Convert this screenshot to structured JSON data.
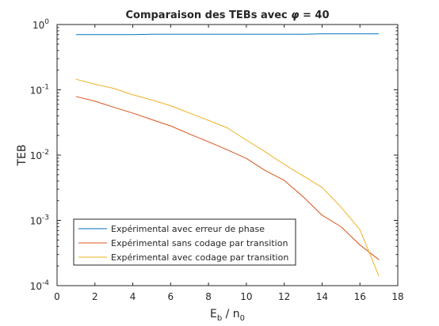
{
  "chart_data": {
    "type": "line",
    "title_prefix": "Comparaison des TEBs avec ",
    "title_symbol": "φ",
    "title_suffix": " = 40",
    "xlabel_base": "E",
    "xlabel_sub": "b",
    "xlabel_mid": " / n",
    "xlabel_sub2": "0",
    "ylabel": "TEB",
    "xlim": [
      0,
      18
    ],
    "ylim": [
      0.0001,
      1
    ],
    "yscale": "log",
    "grid": false,
    "legend_position": "bottom-left",
    "x_ticks": [
      {
        "value": 0,
        "label": "0"
      },
      {
        "value": 2,
        "label": "2"
      },
      {
        "value": 4,
        "label": "4"
      },
      {
        "value": 6,
        "label": "6"
      },
      {
        "value": 8,
        "label": "8"
      },
      {
        "value": 10,
        "label": "10"
      },
      {
        "value": 12,
        "label": "12"
      },
      {
        "value": 14,
        "label": "14"
      },
      {
        "value": 16,
        "label": "16"
      },
      {
        "value": 18,
        "label": "18"
      }
    ],
    "y_ticks": [
      {
        "value": 0.0001,
        "base": "10",
        "exp": "-4"
      },
      {
        "value": 0.001,
        "base": "10",
        "exp": "-3"
      },
      {
        "value": 0.01,
        "base": "10",
        "exp": "-2"
      },
      {
        "value": 0.1,
        "base": "10",
        "exp": "-1"
      },
      {
        "value": 1,
        "base": "10",
        "exp": "0"
      }
    ],
    "x": [
      1,
      2,
      3,
      4,
      5,
      6,
      7,
      8,
      9,
      10,
      11,
      12,
      13,
      14,
      15,
      16,
      17
    ],
    "series": [
      {
        "name": "Expérimental avec erreur de phase",
        "color": "#0072bd",
        "values": [
          0.7,
          0.7,
          0.7,
          0.7,
          0.71,
          0.71,
          0.71,
          0.71,
          0.71,
          0.71,
          0.71,
          0.71,
          0.71,
          0.72,
          0.72,
          0.72,
          0.72
        ]
      },
      {
        "name": "Expérimental sans codage par transition",
        "color": "#d95319",
        "values": [
          0.079,
          0.067,
          0.054,
          0.044,
          0.035,
          0.028,
          0.021,
          0.016,
          0.012,
          0.0089,
          0.0058,
          0.0041,
          0.0023,
          0.0012,
          0.0008,
          0.00042,
          0.00025
        ]
      },
      {
        "name": "Expérimental avec codage par transition",
        "color": "#edb120",
        "values": [
          0.145,
          0.122,
          0.105,
          0.084,
          0.07,
          0.057,
          0.044,
          0.034,
          0.026,
          0.017,
          0.0112,
          0.0072,
          0.0048,
          0.0032,
          0.0016,
          0.00072,
          0.00014
        ]
      }
    ]
  }
}
